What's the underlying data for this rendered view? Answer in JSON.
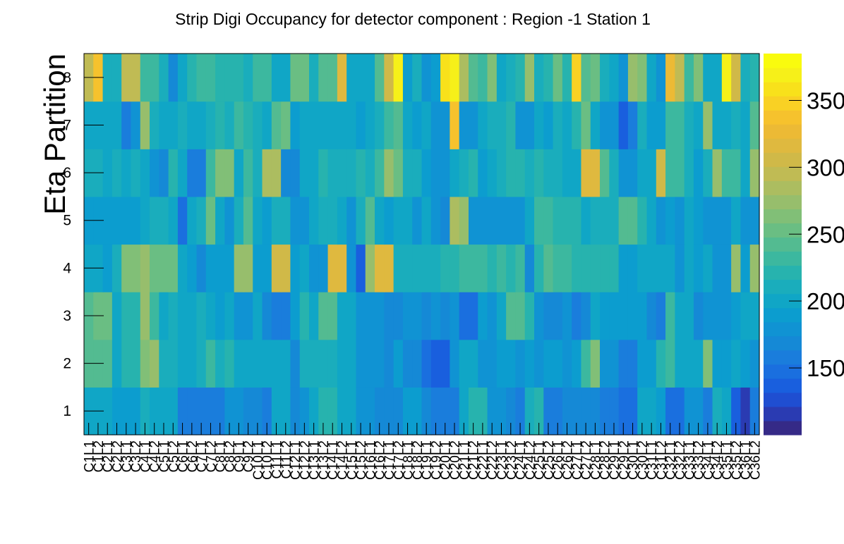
{
  "chart_data": {
    "type": "heatmap",
    "title": "Strip Digi Occupancy for detector component : Region -1 Station 1",
    "xlabel": "",
    "ylabel": "Eta Partition",
    "y_categories": [
      "1",
      "2",
      "3",
      "4",
      "5",
      "6",
      "7",
      "8"
    ],
    "x_categories": [
      "C1L1",
      "C1L2",
      "C2L1",
      "C2L2",
      "C3L1",
      "C3L2",
      "C4L1",
      "C4L2",
      "C5L1",
      "C5L2",
      "C6L1",
      "C6L2",
      "C7L1",
      "C7L2",
      "C8L1",
      "C8L2",
      "C9L1",
      "C9L2",
      "C10L1",
      "C10L2",
      "C11L1",
      "C11L2",
      "C12L1",
      "C12L2",
      "C13L1",
      "C13L2",
      "C14L1",
      "C14L2",
      "C15L1",
      "C15L2",
      "C16L1",
      "C16L2",
      "C17L1",
      "C17L2",
      "C18L1",
      "C18L2",
      "C19L1",
      "C19L2",
      "C20L1",
      "C20L2",
      "C21L1",
      "C21L2",
      "C22L1",
      "C22L2",
      "C23L1",
      "C23L2",
      "C24L1",
      "C24L2",
      "C25L1",
      "C25L2",
      "C26L1",
      "C26L2",
      "C27L1",
      "C27L2",
      "C28L1",
      "C28L2",
      "C29L1",
      "C29L2",
      "C30L1",
      "C30L2",
      "C31L1",
      "C31L2",
      "C32L1",
      "C32L2",
      "C33L1",
      "C33L2",
      "C34L1",
      "C34L2",
      "C35L1",
      "C35L2",
      "C36L1",
      "C36L2"
    ],
    "values": [
      [
        195,
        195,
        195,
        185,
        185,
        185,
        210,
        200,
        195,
        195,
        160,
        160,
        160,
        160,
        160,
        175,
        175,
        170,
        170,
        160,
        195,
        195,
        165,
        180,
        195,
        225,
        225,
        205,
        205,
        175,
        175,
        170,
        170,
        170,
        190,
        190,
        165,
        160,
        160,
        160,
        195,
        225,
        225,
        175,
        175,
        165,
        160,
        215,
        220,
        160,
        160,
        165,
        165,
        165,
        165,
        160,
        160,
        150,
        150,
        200,
        200,
        185,
        150,
        150,
        175,
        175,
        160,
        210,
        205,
        140,
        120,
        160
      ],
      [
        240,
        245,
        245,
        195,
        225,
        225,
        265,
        275,
        210,
        215,
        200,
        200,
        210,
        230,
        210,
        220,
        205,
        205,
        205,
        200,
        195,
        195,
        165,
        215,
        215,
        210,
        210,
        200,
        200,
        175,
        175,
        175,
        170,
        185,
        165,
        165,
        150,
        140,
        140,
        175,
        195,
        195,
        175,
        175,
        185,
        190,
        180,
        190,
        180,
        185,
        185,
        180,
        185,
        230,
        260,
        180,
        180,
        160,
        160,
        190,
        190,
        225,
        235,
        205,
        195,
        205,
        265,
        185,
        185,
        200,
        190,
        175
      ],
      [
        245,
        255,
        250,
        200,
        220,
        220,
        270,
        230,
        200,
        210,
        205,
        205,
        210,
        205,
        190,
        195,
        175,
        175,
        195,
        170,
        155,
        155,
        185,
        220,
        200,
        245,
        245,
        205,
        205,
        175,
        175,
        175,
        165,
        170,
        175,
        175,
        170,
        175,
        165,
        180,
        150,
        150,
        190,
        180,
        200,
        240,
        240,
        220,
        180,
        165,
        165,
        175,
        160,
        165,
        195,
        185,
        185,
        185,
        185,
        185,
        170,
        160,
        235,
        200,
        205,
        170,
        175,
        175,
        175,
        190,
        195,
        205
      ],
      [
        200,
        200,
        185,
        210,
        265,
        265,
        270,
        250,
        255,
        250,
        195,
        185,
        170,
        190,
        185,
        190,
        270,
        270,
        185,
        190,
        305,
        305,
        190,
        200,
        175,
        175,
        315,
        315,
        180,
        140,
        275,
        315,
        315,
        210,
        210,
        215,
        215,
        215,
        220,
        220,
        230,
        230,
        230,
        225,
        230,
        220,
        230,
        165,
        225,
        240,
        230,
        230,
        225,
        220,
        220,
        225,
        220,
        190,
        190,
        200,
        200,
        200,
        195,
        180,
        205,
        190,
        205,
        180,
        180,
        270,
        190,
        275
      ],
      [
        190,
        190,
        190,
        190,
        190,
        190,
        200,
        215,
        210,
        200,
        150,
        195,
        210,
        255,
        200,
        175,
        210,
        240,
        200,
        190,
        210,
        210,
        180,
        180,
        195,
        210,
        210,
        195,
        175,
        215,
        245,
        200,
        185,
        200,
        200,
        180,
        200,
        175,
        165,
        280,
        275,
        175,
        175,
        175,
        175,
        180,
        180,
        200,
        230,
        235,
        225,
        220,
        220,
        200,
        210,
        210,
        210,
        245,
        245,
        220,
        200,
        180,
        185,
        180,
        205,
        185,
        180,
        175,
        180,
        200,
        180,
        180
      ],
      [
        215,
        215,
        200,
        215,
        205,
        210,
        205,
        180,
        165,
        220,
        200,
        160,
        160,
        235,
        260,
        260,
        205,
        230,
        210,
        280,
        280,
        165,
        165,
        200,
        195,
        220,
        215,
        215,
        215,
        220,
        215,
        230,
        270,
        255,
        215,
        215,
        190,
        175,
        175,
        205,
        215,
        220,
        190,
        195,
        215,
        225,
        225,
        210,
        220,
        215,
        215,
        205,
        200,
        315,
        315,
        240,
        215,
        175,
        175,
        205,
        205,
        305,
        230,
        235,
        215,
        190,
        210,
        270,
        230,
        230,
        200,
        270
      ],
      [
        200,
        200,
        205,
        195,
        160,
        180,
        270,
        215,
        200,
        200,
        215,
        200,
        205,
        215,
        220,
        215,
        235,
        220,
        210,
        205,
        240,
        255,
        190,
        200,
        200,
        200,
        205,
        205,
        195,
        185,
        205,
        215,
        235,
        245,
        195,
        190,
        200,
        180,
        180,
        340,
        180,
        180,
        200,
        215,
        215,
        220,
        175,
        175,
        195,
        190,
        215,
        200,
        225,
        255,
        195,
        175,
        175,
        140,
        160,
        215,
        185,
        185,
        230,
        230,
        210,
        195,
        270,
        200,
        200,
        210,
        200,
        240
      ],
      [
        295,
        335,
        215,
        215,
        300,
        300,
        235,
        235,
        210,
        170,
        195,
        220,
        230,
        230,
        220,
        220,
        225,
        215,
        235,
        235,
        205,
        205,
        250,
        250,
        215,
        240,
        240,
        320,
        195,
        205,
        205,
        245,
        305,
        370,
        185,
        210,
        180,
        185,
        360,
        370,
        280,
        245,
        235,
        265,
        205,
        210,
        220,
        275,
        210,
        225,
        255,
        225,
        350,
        245,
        250,
        215,
        200,
        175,
        270,
        260,
        200,
        175,
        325,
        300,
        235,
        265,
        200,
        195,
        370,
        305,
        215,
        220
      ]
    ],
    "zlim": [
      100,
      385
    ],
    "z_ticks": [
      150,
      200,
      250,
      300,
      350
    ],
    "palette": [
      "#352a87",
      "#2a3bb2",
      "#1f4ed1",
      "#195fde",
      "#1a6fdf",
      "#1a7ddc",
      "#1589d6",
      "#1093d3",
      "#0c9dcf",
      "#10a6c6",
      "#1aadbc",
      "#27b3ae",
      "#3cb89f",
      "#53bb91",
      "#6abe83",
      "#81bf77",
      "#97be6c",
      "#acbd60",
      "#c0bb54",
      "#d0b948",
      "#dfb93f",
      "#ecba35",
      "#f6c22d",
      "#f9d124",
      "#f8e11b",
      "#f6f019",
      "#f9fb0e"
    ],
    "colorbar": true,
    "grid": false
  }
}
